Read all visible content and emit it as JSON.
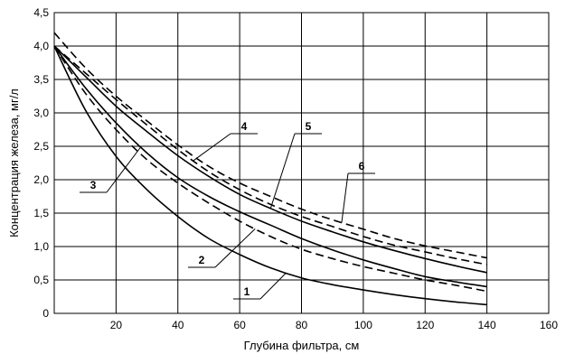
{
  "chart_data": {
    "type": "line",
    "title": "",
    "xlabel": "Глубина фильтра, см",
    "ylabel": "Концентрация железа, мг/л",
    "xlim": [
      0,
      160
    ],
    "ylim": [
      0,
      4.5
    ],
    "x_ticks": [
      20,
      40,
      60,
      80,
      100,
      120,
      140,
      160
    ],
    "x_tick_labels": [
      "20",
      "40",
      "60",
      "80",
      "100",
      "120",
      "140",
      "160"
    ],
    "y_ticks": [
      0,
      0.5,
      1.0,
      1.5,
      2.0,
      2.5,
      3.0,
      3.5,
      4.0,
      4.5
    ],
    "y_tick_labels": [
      "0",
      "0,5",
      "1,0",
      "1,5",
      "2,0",
      "2,5",
      "3,0",
      "3,5",
      "4,0",
      "4,5"
    ],
    "grid": true,
    "series": [
      {
        "name": "1",
        "style": "solid",
        "x": [
          0,
          10,
          20,
          30,
          40,
          50,
          60,
          70,
          80,
          90,
          100,
          110,
          120,
          130,
          140
        ],
        "y": [
          4.0,
          3.05,
          2.35,
          1.85,
          1.45,
          1.12,
          0.88,
          0.68,
          0.53,
          0.43,
          0.35,
          0.28,
          0.22,
          0.17,
          0.13
        ]
      },
      {
        "name": "2",
        "style": "dashed",
        "x": [
          0,
          10,
          20,
          30,
          40,
          50,
          60,
          70,
          80,
          90,
          100,
          110,
          120,
          130,
          140
        ],
        "y": [
          4.0,
          3.3,
          2.75,
          2.3,
          1.95,
          1.65,
          1.38,
          1.15,
          0.96,
          0.82,
          0.7,
          0.6,
          0.5,
          0.42,
          0.33
        ]
      },
      {
        "name": "3",
        "style": "solid",
        "x": [
          0,
          10,
          20,
          30,
          40,
          50,
          60,
          70,
          80,
          90,
          100,
          110,
          120,
          130,
          140
        ],
        "y": [
          4.0,
          3.38,
          2.85,
          2.4,
          2.03,
          1.75,
          1.52,
          1.32,
          1.12,
          0.95,
          0.8,
          0.67,
          0.55,
          0.47,
          0.4
        ]
      },
      {
        "name": "4",
        "style": "dashed",
        "x": [
          0,
          10,
          20,
          30,
          40,
          50,
          60,
          70,
          80,
          90,
          100,
          110,
          120,
          130,
          140
        ],
        "y": [
          4.0,
          3.6,
          3.2,
          2.82,
          2.45,
          2.12,
          1.85,
          1.63,
          1.45,
          1.3,
          1.15,
          1.02,
          0.92,
          0.82,
          0.73
        ]
      },
      {
        "name": "5",
        "style": "solid",
        "x": [
          0,
          10,
          20,
          30,
          40,
          50,
          60,
          70,
          80,
          90,
          100,
          110,
          120,
          130,
          140
        ],
        "y": [
          4.0,
          3.55,
          3.1,
          2.72,
          2.36,
          2.05,
          1.78,
          1.57,
          1.38,
          1.22,
          1.07,
          0.94,
          0.82,
          0.71,
          0.61
        ]
      },
      {
        "name": "6",
        "style": "dashed",
        "x": [
          0,
          10,
          20,
          30,
          40,
          50,
          60,
          70,
          80,
          90,
          100,
          110,
          120,
          130,
          140
        ],
        "y": [
          4.2,
          3.68,
          3.25,
          2.88,
          2.52,
          2.2,
          1.95,
          1.75,
          1.56,
          1.4,
          1.26,
          1.12,
          1.01,
          0.92,
          0.83
        ]
      }
    ],
    "callouts": [
      {
        "label": "1",
        "series": "1",
        "at_x": 75
      },
      {
        "label": "2",
        "series": "2",
        "at_x": 65
      },
      {
        "label": "3",
        "series": "3",
        "at_x": 28
      },
      {
        "label": "4",
        "series": "4",
        "at_x": 45
      },
      {
        "label": "5",
        "series": "5",
        "at_x": 70
      },
      {
        "label": "6",
        "series": "6",
        "at_x": 93
      }
    ]
  }
}
